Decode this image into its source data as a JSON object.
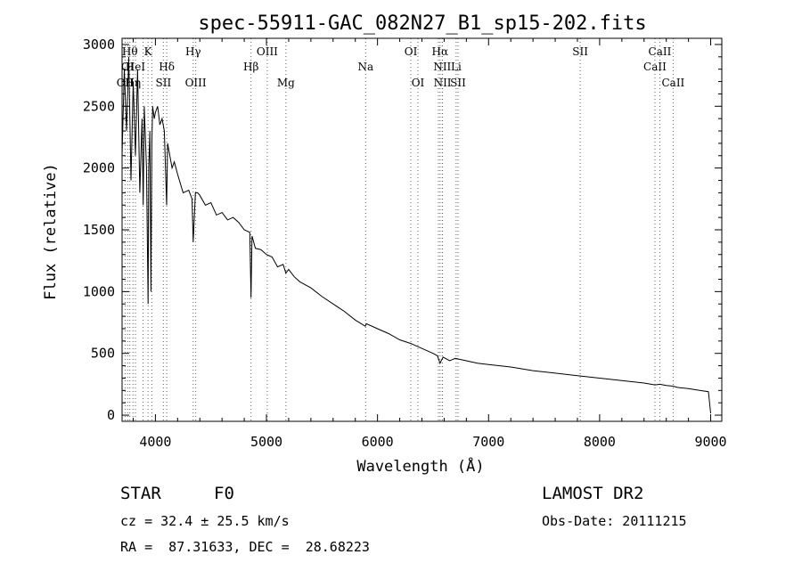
{
  "chart_data": {
    "type": "line",
    "title": "spec-55911-GAC_082N27_B1_sp15-202.fits",
    "xlabel": "Wavelength (Å)",
    "ylabel": "Flux (relative)",
    "xlim": [
      3700,
      9100
    ],
    "ylim": [
      -50,
      3050
    ],
    "xticks": [
      4000,
      5000,
      6000,
      7000,
      8000,
      9000
    ],
    "yticks": [
      0,
      500,
      1000,
      1500,
      2000,
      2500,
      3000
    ],
    "grid": false,
    "line_color": "#000000",
    "marker_color": "#cc3333",
    "series": [
      {
        "x": [
          3700,
          3720,
          3740,
          3760,
          3780,
          3800,
          3820,
          3840,
          3860,
          3880,
          3890,
          3900,
          3920,
          3934,
          3940,
          3950,
          3960,
          3968,
          3975,
          3990,
          4000,
          4020,
          4040,
          4060,
          4080,
          4101,
          4110,
          4130,
          4150,
          4170,
          4200,
          4250,
          4300,
          4330,
          4340,
          4360,
          4380,
          4400,
          4450,
          4500,
          4550,
          4600,
          4650,
          4700,
          4750,
          4800,
          4850,
          4861,
          4870,
          4900,
          4950,
          5000,
          5050,
          5100,
          5150,
          5175,
          5200,
          5250,
          5300,
          5400,
          5500,
          5600,
          5700,
          5800,
          5890,
          5900,
          6000,
          6100,
          6200,
          6300,
          6400,
          6500,
          6540,
          6563,
          6590,
          6650,
          6700,
          6800,
          6900,
          7000,
          7200,
          7400,
          7600,
          7800,
          8000,
          8200,
          8400,
          8498,
          8542,
          8600,
          8662,
          8700,
          8800,
          8900,
          8980,
          9000
        ],
        "y": [
          2100,
          2800,
          2300,
          2900,
          1900,
          2700,
          2100,
          2800,
          1800,
          2400,
          1700,
          2500,
          2000,
          900,
          2000,
          2300,
          1000,
          2200,
          2500,
          2400,
          2450,
          2500,
          2350,
          2400,
          2300,
          1700,
          2200,
          2100,
          2000,
          2050,
          1950,
          1800,
          1820,
          1750,
          1400,
          1800,
          1800,
          1780,
          1700,
          1720,
          1620,
          1640,
          1580,
          1600,
          1560,
          1500,
          1480,
          950,
          1450,
          1350,
          1340,
          1300,
          1280,
          1200,
          1220,
          1150,
          1180,
          1120,
          1080,
          1030,
          960,
          900,
          840,
          770,
          720,
          740,
          700,
          660,
          610,
          580,
          540,
          500,
          480,
          420,
          470,
          440,
          460,
          440,
          420,
          410,
          390,
          360,
          340,
          320,
          300,
          280,
          260,
          245,
          250,
          240,
          235,
          225,
          215,
          200,
          190,
          15
        ]
      }
    ],
    "line_markers": [
      {
        "wl": 3727,
        "label": "OII",
        "row": 3
      },
      {
        "wl": 3750,
        "label": "OI",
        "row": 2
      },
      {
        "wl": 3770,
        "label": "Hθ",
        "row": 1
      },
      {
        "wl": 3798,
        "label": "Hη",
        "row": 3
      },
      {
        "wl": 3820,
        "label": "HeI",
        "row": 2
      },
      {
        "wl": 3889,
        "label": "",
        "row": 0
      },
      {
        "wl": 3934,
        "label": "K",
        "row": 1
      },
      {
        "wl": 3968,
        "label": "",
        "row": 0
      },
      {
        "wl": 4072,
        "label": "SII",
        "row": 3
      },
      {
        "wl": 4102,
        "label": "Hδ",
        "row": 2
      },
      {
        "wl": 4340,
        "label": "Hγ",
        "row": 1
      },
      {
        "wl": 4363,
        "label": "OIII",
        "row": 3
      },
      {
        "wl": 4861,
        "label": "Hβ",
        "row": 2
      },
      {
        "wl": 5007,
        "label": "OIII",
        "row": 1
      },
      {
        "wl": 5175,
        "label": "Mg",
        "row": 3
      },
      {
        "wl": 5893,
        "label": "Na",
        "row": 2
      },
      {
        "wl": 6300,
        "label": "OI",
        "row": 1
      },
      {
        "wl": 6364,
        "label": "OI",
        "row": 3
      },
      {
        "wl": 6548,
        "label": "",
        "row": 0
      },
      {
        "wl": 6563,
        "label": "Hα",
        "row": 1
      },
      {
        "wl": 6583,
        "label": "NII",
        "row": 2
      },
      {
        "wl": 6585,
        "label": "NII",
        "row": 3
      },
      {
        "wl": 6708,
        "label": "Li",
        "row": 2
      },
      {
        "wl": 6725,
        "label": "SII",
        "row": 3
      },
      {
        "wl": 7825,
        "label": "SII",
        "row": 1
      },
      {
        "wl": 8498,
        "label": "CaII",
        "row": 2
      },
      {
        "wl": 8542,
        "label": "CaII",
        "row": 1
      },
      {
        "wl": 8662,
        "label": "CaII",
        "row": 3
      }
    ]
  },
  "info": {
    "class_label": "STAR",
    "subclass": "F0",
    "survey": "LAMOST DR2",
    "cz": "cz = 32.4 ± 25.5 km/s",
    "obs_date": "Obs-Date: 20111215",
    "coords": "RA =  87.31633, DEC =  28.68223"
  }
}
